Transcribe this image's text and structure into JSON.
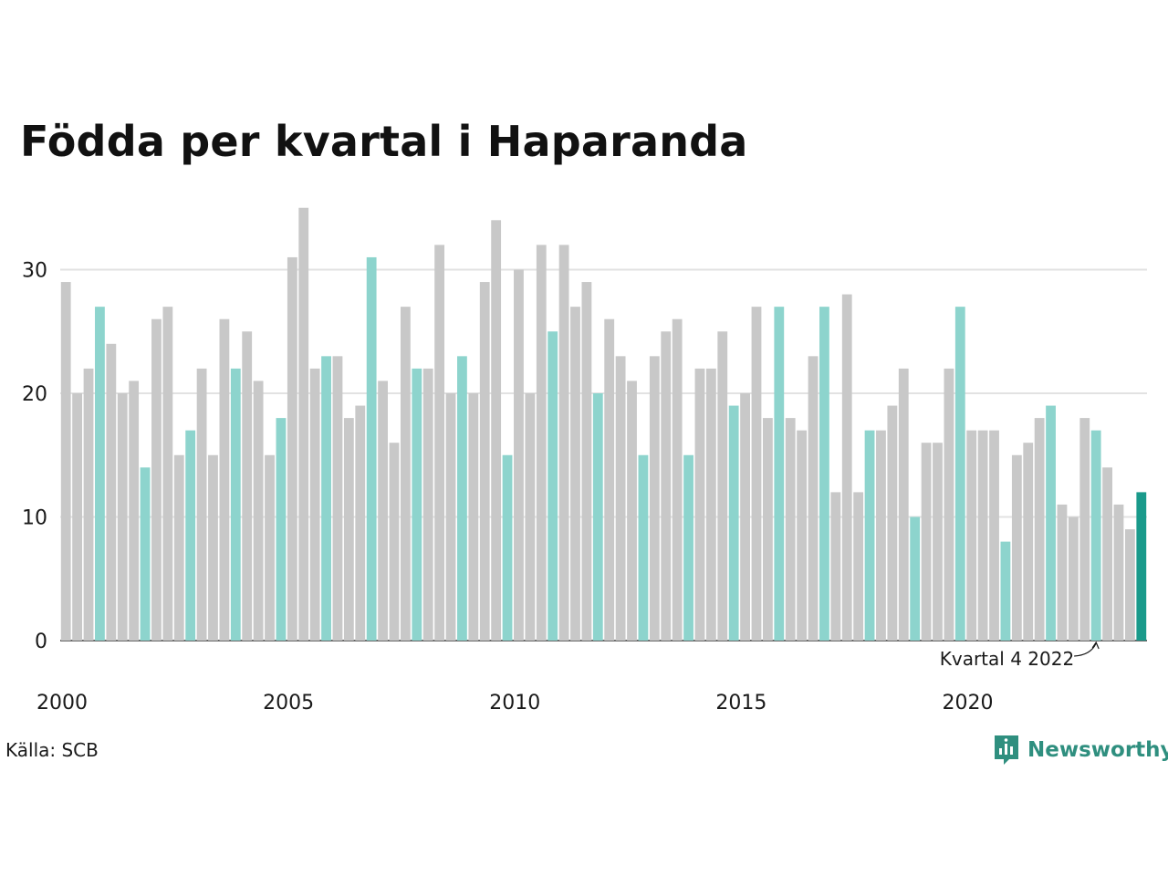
{
  "chart_data": {
    "type": "bar",
    "title": "Födda per kvartal i Haparanda",
    "xlabel": "",
    "ylabel": "",
    "x_start_year": 2000,
    "quarters_per_year": 4,
    "x_ticks": [
      "2000",
      "2005",
      "2010",
      "2015",
      "2020"
    ],
    "y_ticks": [
      0,
      10,
      20,
      30
    ],
    "ylim": [
      0,
      36
    ],
    "grid": true,
    "colors": {
      "default": "#c8c8c8",
      "fourth_quarter": "#8dd4cd",
      "latest": "#1a9a8b",
      "grid": "#e2e2e2",
      "axis": "#333333"
    },
    "highlight_quarter": 4,
    "values": [
      29,
      20,
      22,
      27,
      24,
      20,
      21,
      14,
      26,
      27,
      15,
      17,
      22,
      15,
      26,
      22,
      25,
      21,
      15,
      18,
      31,
      35,
      22,
      23,
      23,
      18,
      19,
      31,
      21,
      16,
      27,
      22,
      22,
      32,
      20,
      23,
      20,
      29,
      34,
      15,
      30,
      20,
      32,
      25,
      32,
      27,
      29,
      20,
      26,
      23,
      21,
      15,
      23,
      25,
      26,
      15,
      22,
      22,
      25,
      19,
      20,
      27,
      18,
      27,
      18,
      17,
      23,
      27,
      12,
      28,
      12,
      17,
      17,
      19,
      22,
      10,
      16,
      16,
      22,
      27,
      17,
      17,
      17,
      8,
      15,
      16,
      18,
      19,
      11,
      10,
      18,
      17,
      14,
      11,
      9,
      12
    ],
    "annotation": {
      "text": "Kvartal 4 2022",
      "index": 91
    }
  },
  "source": "Källa: SCB",
  "brand": {
    "name": "Newsworthy",
    "icon": "newsworthy-logo-icon",
    "color": "#2f8f7f"
  }
}
